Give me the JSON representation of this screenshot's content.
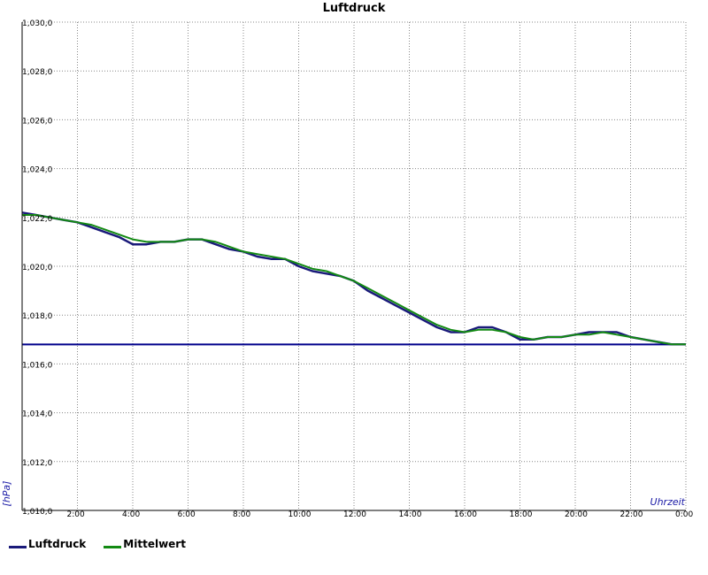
{
  "chart_data": {
    "type": "line",
    "title": "Luftdruck",
    "xlabel": "Uhrzeit",
    "ylabel": "[hPa]",
    "x_unit": "hours",
    "xlim": [
      0,
      24
    ],
    "ylim": [
      1010,
      1030
    ],
    "y_ticks": [
      1010,
      1012,
      1014,
      1016,
      1018,
      1020,
      1022,
      1024,
      1026,
      1028,
      1030
    ],
    "y_tick_labels": [
      "1,010,0",
      "1,012,0",
      "1,014,0",
      "1,016,0",
      "1,018,0",
      "1,020,0",
      "1,022,0",
      "1,024,0",
      "1,026,0",
      "1,028,0",
      "1,030,0"
    ],
    "x_ticks": [
      2,
      4,
      6,
      8,
      10,
      12,
      14,
      16,
      18,
      20,
      22,
      24
    ],
    "x_tick_labels": [
      "2:00",
      "4:00",
      "6:00",
      "8:00",
      "10:00",
      "12:00",
      "14:00",
      "16:00",
      "18:00",
      "20:00",
      "22:00",
      "0:00"
    ],
    "grid": true,
    "legend_position": "bottom-left",
    "reference_line": {
      "y": 1016.8,
      "color": "#00008b"
    },
    "series": [
      {
        "name": "Luftdruck",
        "color": "#1a1a7a",
        "x": [
          0,
          0.5,
          1,
          1.5,
          2,
          2.5,
          3,
          3.5,
          4,
          4.5,
          5,
          5.5,
          6,
          6.5,
          7,
          7.5,
          8,
          8.5,
          9,
          9.5,
          10,
          10.5,
          11,
          11.5,
          12,
          12.5,
          13,
          13.5,
          14,
          14.5,
          15,
          15.5,
          16,
          16.5,
          17,
          17.5,
          18,
          18.5,
          19,
          19.5,
          20,
          20.5,
          21,
          21.5,
          22,
          22.5,
          23,
          23.5,
          24
        ],
        "y": [
          1022.2,
          1022.1,
          1022.0,
          1021.9,
          1021.8,
          1021.6,
          1021.4,
          1021.2,
          1020.9,
          1020.9,
          1021.0,
          1021.0,
          1021.1,
          1021.1,
          1020.9,
          1020.7,
          1020.6,
          1020.4,
          1020.3,
          1020.3,
          1020.0,
          1019.8,
          1019.7,
          1019.6,
          1019.4,
          1019.0,
          1018.7,
          1018.4,
          1018.1,
          1017.8,
          1017.5,
          1017.3,
          1017.3,
          1017.5,
          1017.5,
          1017.3,
          1017.0,
          1017.0,
          1017.1,
          1017.1,
          1017.2,
          1017.3,
          1017.3,
          1017.3,
          1017.1,
          1017.0,
          1016.9,
          1016.8,
          1016.8
        ]
      },
      {
        "name": "Mittelwert",
        "color": "#138a13",
        "x": [
          0,
          0.5,
          1,
          1.5,
          2,
          2.5,
          3,
          3.5,
          4,
          4.5,
          5,
          5.5,
          6,
          6.5,
          7,
          7.5,
          8,
          8.5,
          9,
          9.5,
          10,
          10.5,
          11,
          11.5,
          12,
          12.5,
          13,
          13.5,
          14,
          14.5,
          15,
          15.5,
          16,
          16.5,
          17,
          17.5,
          18,
          18.5,
          19,
          19.5,
          20,
          20.5,
          21,
          21.5,
          22,
          22.5,
          23,
          23.5,
          24
        ],
        "y": [
          1022.1,
          1022.1,
          1022.0,
          1021.9,
          1021.8,
          1021.7,
          1021.5,
          1021.3,
          1021.1,
          1021.0,
          1021.0,
          1021.0,
          1021.1,
          1021.1,
          1021.0,
          1020.8,
          1020.6,
          1020.5,
          1020.4,
          1020.3,
          1020.1,
          1019.9,
          1019.8,
          1019.6,
          1019.4,
          1019.1,
          1018.8,
          1018.5,
          1018.2,
          1017.9,
          1017.6,
          1017.4,
          1017.3,
          1017.4,
          1017.4,
          1017.3,
          1017.1,
          1017.0,
          1017.1,
          1017.1,
          1017.2,
          1017.2,
          1017.3,
          1017.2,
          1017.1,
          1017.0,
          1016.9,
          1016.8,
          1016.8
        ]
      }
    ]
  }
}
